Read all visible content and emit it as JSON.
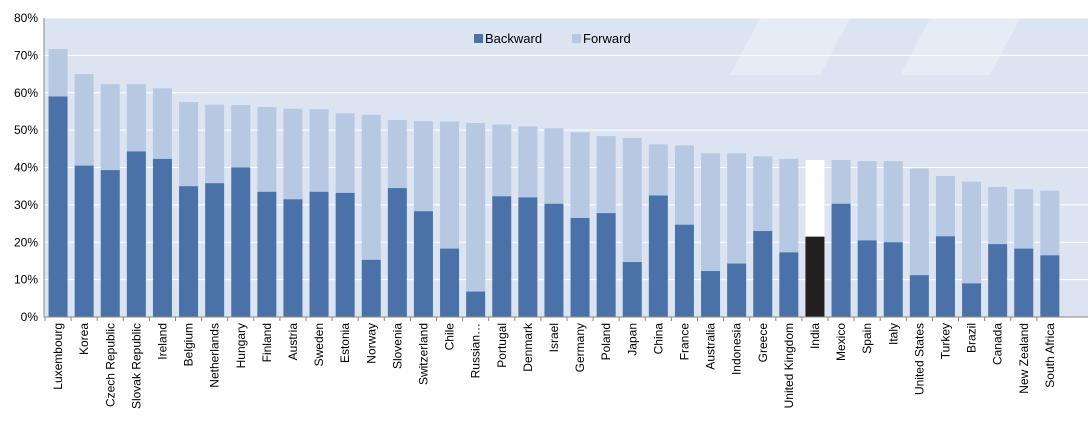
{
  "chart_data": {
    "type": "bar",
    "stacked": true,
    "categories": [
      "Luxembourg",
      "Korea",
      "Czech Republic",
      "Slovak Republic",
      "Ireland",
      "Belgium",
      "Netherlands",
      "Hungary",
      "Finland",
      "Austria",
      "Sweden",
      "Estonia",
      "Norway",
      "Slovenia",
      "Switzerland",
      "Chile",
      "Russian…",
      "Portugal",
      "Denmark",
      "Israel",
      "Germany",
      "Poland",
      "Japan",
      "China",
      "France",
      "Australia",
      "Indonesia",
      "Greece",
      "United Kingdom",
      "India",
      "Mexico",
      "Spain",
      "Italy",
      "United States",
      "Turkey",
      "Brazil",
      "Canada",
      "New Zealand",
      "South Africa"
    ],
    "series": [
      {
        "name": "Backward",
        "color": "#4a72a8",
        "values": [
          59,
          40.5,
          39.3,
          44.3,
          42.3,
          35,
          35.8,
          40,
          33.5,
          31.5,
          33.5,
          33.2,
          15.3,
          34.5,
          28.3,
          18.3,
          6.8,
          32.3,
          32,
          30.3,
          26.5,
          27.8,
          14.7,
          32.5,
          24.7,
          12.3,
          14.3,
          23,
          17.3,
          21.5,
          30.3,
          20.5,
          20,
          11.2,
          21.6,
          9,
          19.5,
          18.3,
          16.5
        ]
      },
      {
        "name": "Forward",
        "color": "#b7c8e2",
        "values": [
          12.7,
          24.5,
          23,
          18,
          18.9,
          22.5,
          21,
          16.7,
          22.7,
          24.2,
          22.1,
          21.3,
          38.8,
          18.2,
          24.1,
          34,
          45.1,
          19.2,
          19,
          20.2,
          22.9,
          20.6,
          33.2,
          13.7,
          21.2,
          31.5,
          29.5,
          20,
          25,
          20.5,
          11.7,
          21.2,
          21.7,
          28.5,
          16.1,
          27.2,
          15.3,
          15.9,
          17.3
        ]
      }
    ],
    "highlight": {
      "category": "India",
      "backward_color": "#231f20",
      "forward_color": "#ffffff"
    },
    "ylim": [
      0,
      80
    ],
    "yticks": [
      "0%",
      "10%",
      "20%",
      "30%",
      "40%",
      "50%",
      "60%",
      "70%",
      "80%"
    ],
    "yticks_values": [
      0,
      10,
      20,
      30,
      40,
      50,
      60,
      70,
      80
    ],
    "legend_position": "top-center",
    "background_color": "#dbe4f0",
    "grid": "horizontal-white"
  }
}
